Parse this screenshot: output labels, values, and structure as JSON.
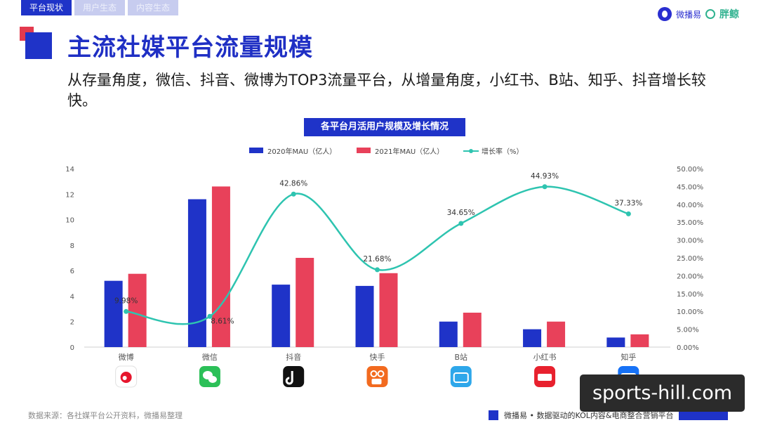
{
  "tabs": [
    {
      "label": "平台现状",
      "active": true
    },
    {
      "label": "用户生态",
      "active": false
    },
    {
      "label": "内容生态",
      "active": false
    }
  ],
  "logo": {
    "text1": "微播易",
    "text2": "胖鲸"
  },
  "page_title": "主流社媒平台流量规模",
  "description": "从存量角度，微信、抖音、微博为TOP3流量平台，从增量角度，小红书、B站、知乎、抖音增长较快。",
  "source_note": "数据来源：各社媒平台公开资料，微播易整理",
  "footer_text": "微播易 • 数据驱动的KOL内容&电商整合营销平台",
  "watermark": "sports-hill.com",
  "colors": {
    "blue": "#1f33c8",
    "red": "#e8415a",
    "teal": "#2ec4b0",
    "brand": "#1f33c8"
  },
  "chart_data": {
    "type": "bar",
    "title": "各平台月活用户规模及增长情况",
    "categories": [
      "微博",
      "微信",
      "抖音",
      "快手",
      "B站",
      "小红书",
      "知乎"
    ],
    "category_icons": [
      "weibo-icon",
      "wechat-icon",
      "douyin-icon",
      "kuaishou-icon",
      "bilibili-icon",
      "xiaohongshu-icon",
      "zhihu-icon"
    ],
    "series": [
      {
        "name": "2020年MAU（亿人）",
        "type": "bar",
        "axis": "left",
        "color": "#1f33c8",
        "values": [
          5.2,
          11.6,
          4.9,
          4.8,
          2.0,
          1.4,
          0.75
        ]
      },
      {
        "name": "2021年MAU（亿人）",
        "type": "bar",
        "axis": "left",
        "color": "#e8415a",
        "values": [
          5.75,
          12.6,
          7.0,
          5.8,
          2.7,
          2.0,
          1.0
        ]
      },
      {
        "name": "增长率（%）",
        "type": "line",
        "axis": "right",
        "color": "#2ec4b0",
        "values": [
          9.98,
          8.61,
          42.86,
          21.68,
          34.65,
          44.93,
          37.33
        ]
      }
    ],
    "data_labels": [
      "9.98%",
      "8.61%",
      "42.86%",
      "21.68%",
      "34.65%",
      "44.93%",
      "37.33%"
    ],
    "y_left": {
      "min": 0,
      "max": 14,
      "ticks": [
        "0",
        "2",
        "4",
        "6",
        "8",
        "10",
        "12",
        "14"
      ]
    },
    "y_right": {
      "min": 0,
      "max": 50,
      "ticks": [
        "0.00%",
        "5.00%",
        "10.00%",
        "15.00%",
        "20.00%",
        "25.00%",
        "30.00%",
        "35.00%",
        "40.00%",
        "45.00%",
        "50.00%"
      ]
    },
    "legend_position": "top",
    "grid": false
  }
}
